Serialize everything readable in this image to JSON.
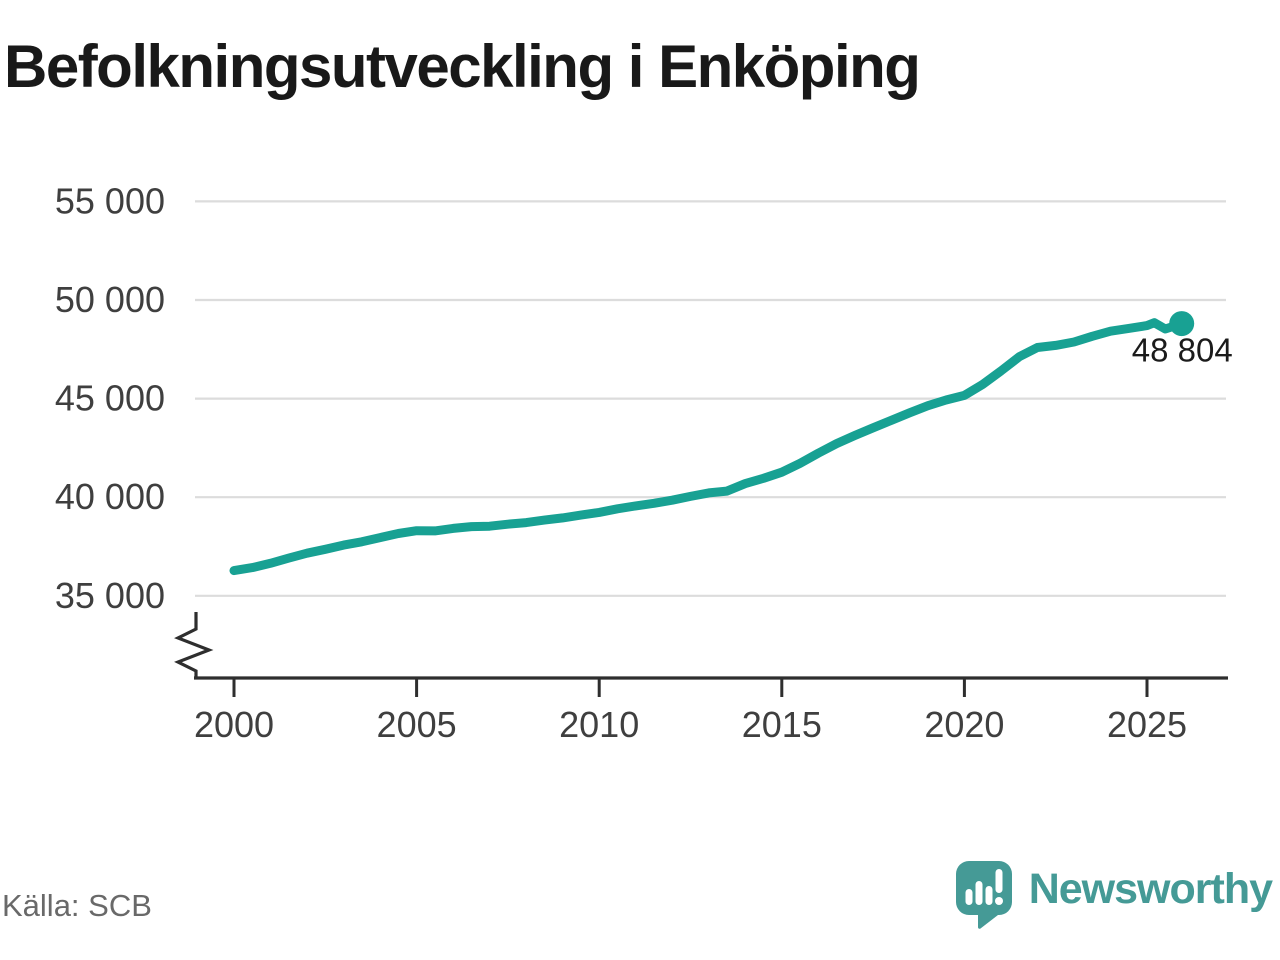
{
  "header": {
    "title": "Befolkningsutveckling i Enköping"
  },
  "footer": {
    "source": "Källa: SCB",
    "brand": "Newsworthy"
  },
  "colors": {
    "accent": "#18a193",
    "brand": "#459a96",
    "grid": "#dcdcdc",
    "axis": "#2e2e2e",
    "tick_text": "#3f3f3f",
    "title_text": "#191919",
    "source_text": "#696969",
    "value_text": "#1b1b1b"
  },
  "chart_data": {
    "type": "line",
    "title": "Befolkningsutveckling i Enköping",
    "source": "Källa: SCB",
    "grid": "horizontal",
    "legend": "none",
    "x_axis": {
      "ticks": [
        2000,
        2005,
        2010,
        2015,
        2020,
        2025
      ],
      "range": [
        1999.0,
        2027.3
      ]
    },
    "y_axis": {
      "ticks": [
        {
          "value": 55000,
          "label": "55 000"
        },
        {
          "value": 50000,
          "label": "50 000"
        },
        {
          "value": 45000,
          "label": "45 000"
        },
        {
          "value": 40000,
          "label": "40 000"
        },
        {
          "value": 35000,
          "label": "35 000"
        }
      ],
      "shown_range": [
        35000,
        55000
      ],
      "axis_break_at_bottom": true
    },
    "series": [
      {
        "name": "Befolkning",
        "points": [
          [
            2000.0,
            36280
          ],
          [
            2000.5,
            36430
          ],
          [
            2001.0,
            36650
          ],
          [
            2001.5,
            36910
          ],
          [
            2002.0,
            37160
          ],
          [
            2002.5,
            37360
          ],
          [
            2003.0,
            37570
          ],
          [
            2003.5,
            37740
          ],
          [
            2004.0,
            37950
          ],
          [
            2004.5,
            38160
          ],
          [
            2005.0,
            38300
          ],
          [
            2005.5,
            38290
          ],
          [
            2006.0,
            38420
          ],
          [
            2006.5,
            38510
          ],
          [
            2007.0,
            38530
          ],
          [
            2007.5,
            38630
          ],
          [
            2008.0,
            38710
          ],
          [
            2008.5,
            38840
          ],
          [
            2009.0,
            38950
          ],
          [
            2009.5,
            39090
          ],
          [
            2010.0,
            39230
          ],
          [
            2010.5,
            39410
          ],
          [
            2011.0,
            39560
          ],
          [
            2011.5,
            39690
          ],
          [
            2012.0,
            39850
          ],
          [
            2012.5,
            40040
          ],
          [
            2013.0,
            40220
          ],
          [
            2013.5,
            40310
          ],
          [
            2014.0,
            40690
          ],
          [
            2014.5,
            40960
          ],
          [
            2015.0,
            41270
          ],
          [
            2015.5,
            41720
          ],
          [
            2016.0,
            42230
          ],
          [
            2016.5,
            42720
          ],
          [
            2017.0,
            43130
          ],
          [
            2017.5,
            43520
          ],
          [
            2018.0,
            43900
          ],
          [
            2018.5,
            44280
          ],
          [
            2019.0,
            44640
          ],
          [
            2019.5,
            44930
          ],
          [
            2020.0,
            45160
          ],
          [
            2020.5,
            45720
          ],
          [
            2021.0,
            46400
          ],
          [
            2021.5,
            47120
          ],
          [
            2022.0,
            47590
          ],
          [
            2022.5,
            47700
          ],
          [
            2023.0,
            47870
          ],
          [
            2023.5,
            48160
          ],
          [
            2024.0,
            48420
          ],
          [
            2024.5,
            48560
          ],
          [
            2025.0,
            48700
          ],
          [
            2025.2,
            48850
          ],
          [
            2025.5,
            48530
          ],
          [
            2025.95,
            48804
          ]
        ]
      }
    ],
    "latest": {
      "year": 2025.95,
      "value": 48804,
      "label": "48 804"
    }
  }
}
